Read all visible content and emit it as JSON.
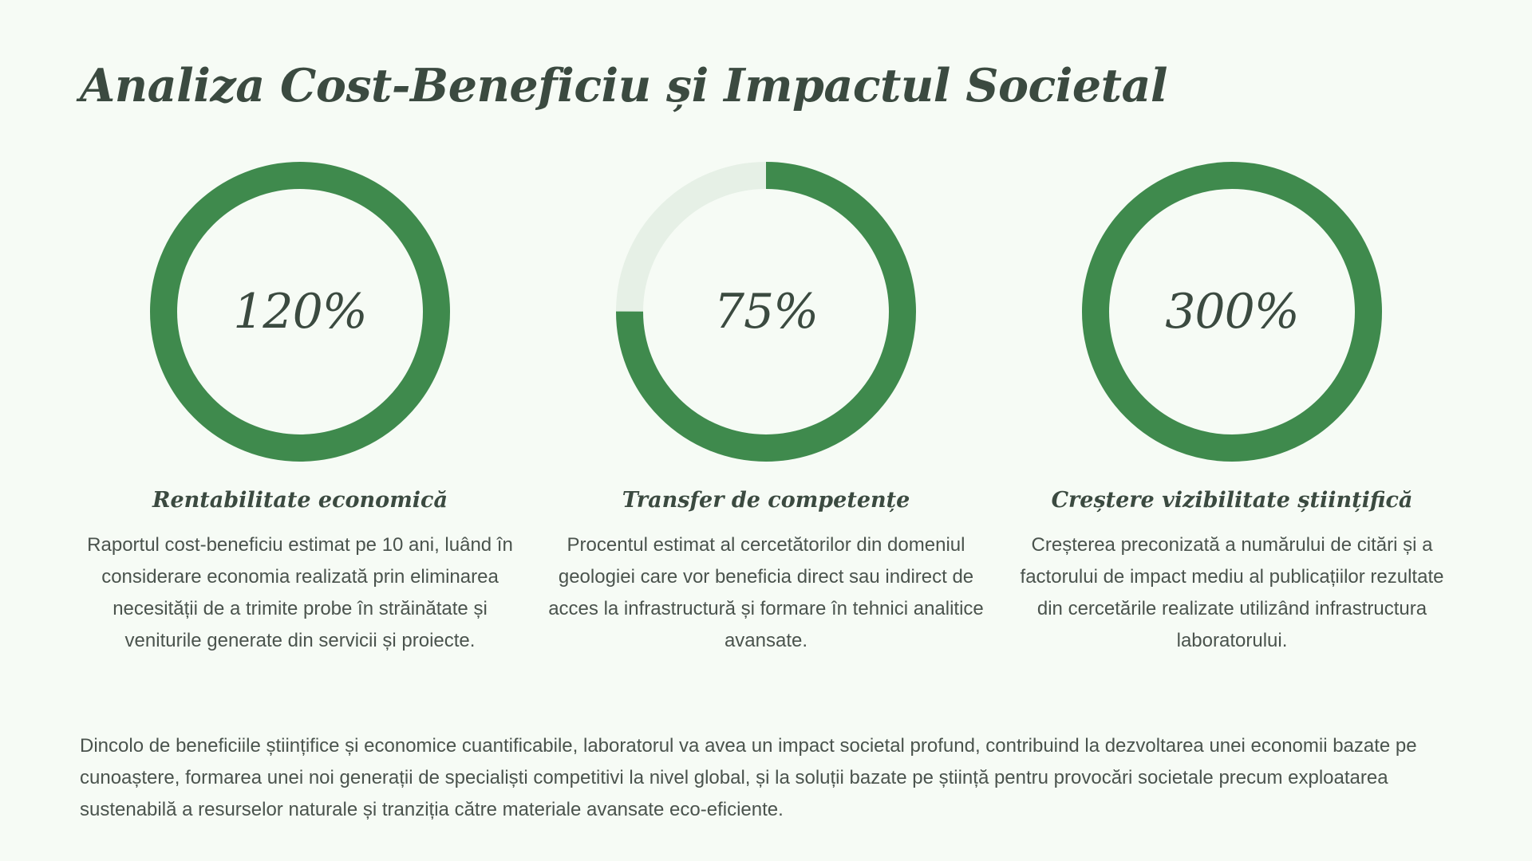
{
  "title": "Analiza Cost-Beneficiu și Impactul Societal",
  "colors": {
    "background": "#f6fbf5",
    "ring_fill": "#3f8a4d",
    "ring_track": "#e6f0e6",
    "heading": "#3b4a40",
    "body_text": "#4a534d"
  },
  "metrics": [
    {
      "value": "120%",
      "progress": 1.0,
      "title": "Rentabilitate economică",
      "description": "Raportul cost-beneficiu estimat pe 10 ani, luând în considerare economia realizată prin eliminarea necesității de a trimite probe în străinătate și veniturile generate din servicii și proiecte."
    },
    {
      "value": "75%",
      "progress": 0.75,
      "title": "Transfer de competențe",
      "description": "Procentul estimat al cercetătorilor din domeniul geologiei care vor beneficia direct sau indirect de acces la infrastructură și formare în tehnici analitice avansate."
    },
    {
      "value": "300%",
      "progress": 1.0,
      "title": "Creștere vizibilitate științifică",
      "description": "Creșterea preconizată a numărului de citări și a factorului de impact mediu al publicațiilor rezultate din cercetările realizate utilizând infrastructura laboratorului."
    }
  ],
  "summary": "Dincolo de beneficiile științifice și economice cuantificabile, laboratorul va avea un impact societal profund, contribuind la dezvoltarea unei economii bazate pe cunoaștere, formarea unei noi generații de specialiști competitivi la nivel global, și la soluții bazate pe știință pentru provocări societale precum exploatarea sustenabilă a resurselor naturale și tranziția către materiale avansate eco-eficiente."
}
